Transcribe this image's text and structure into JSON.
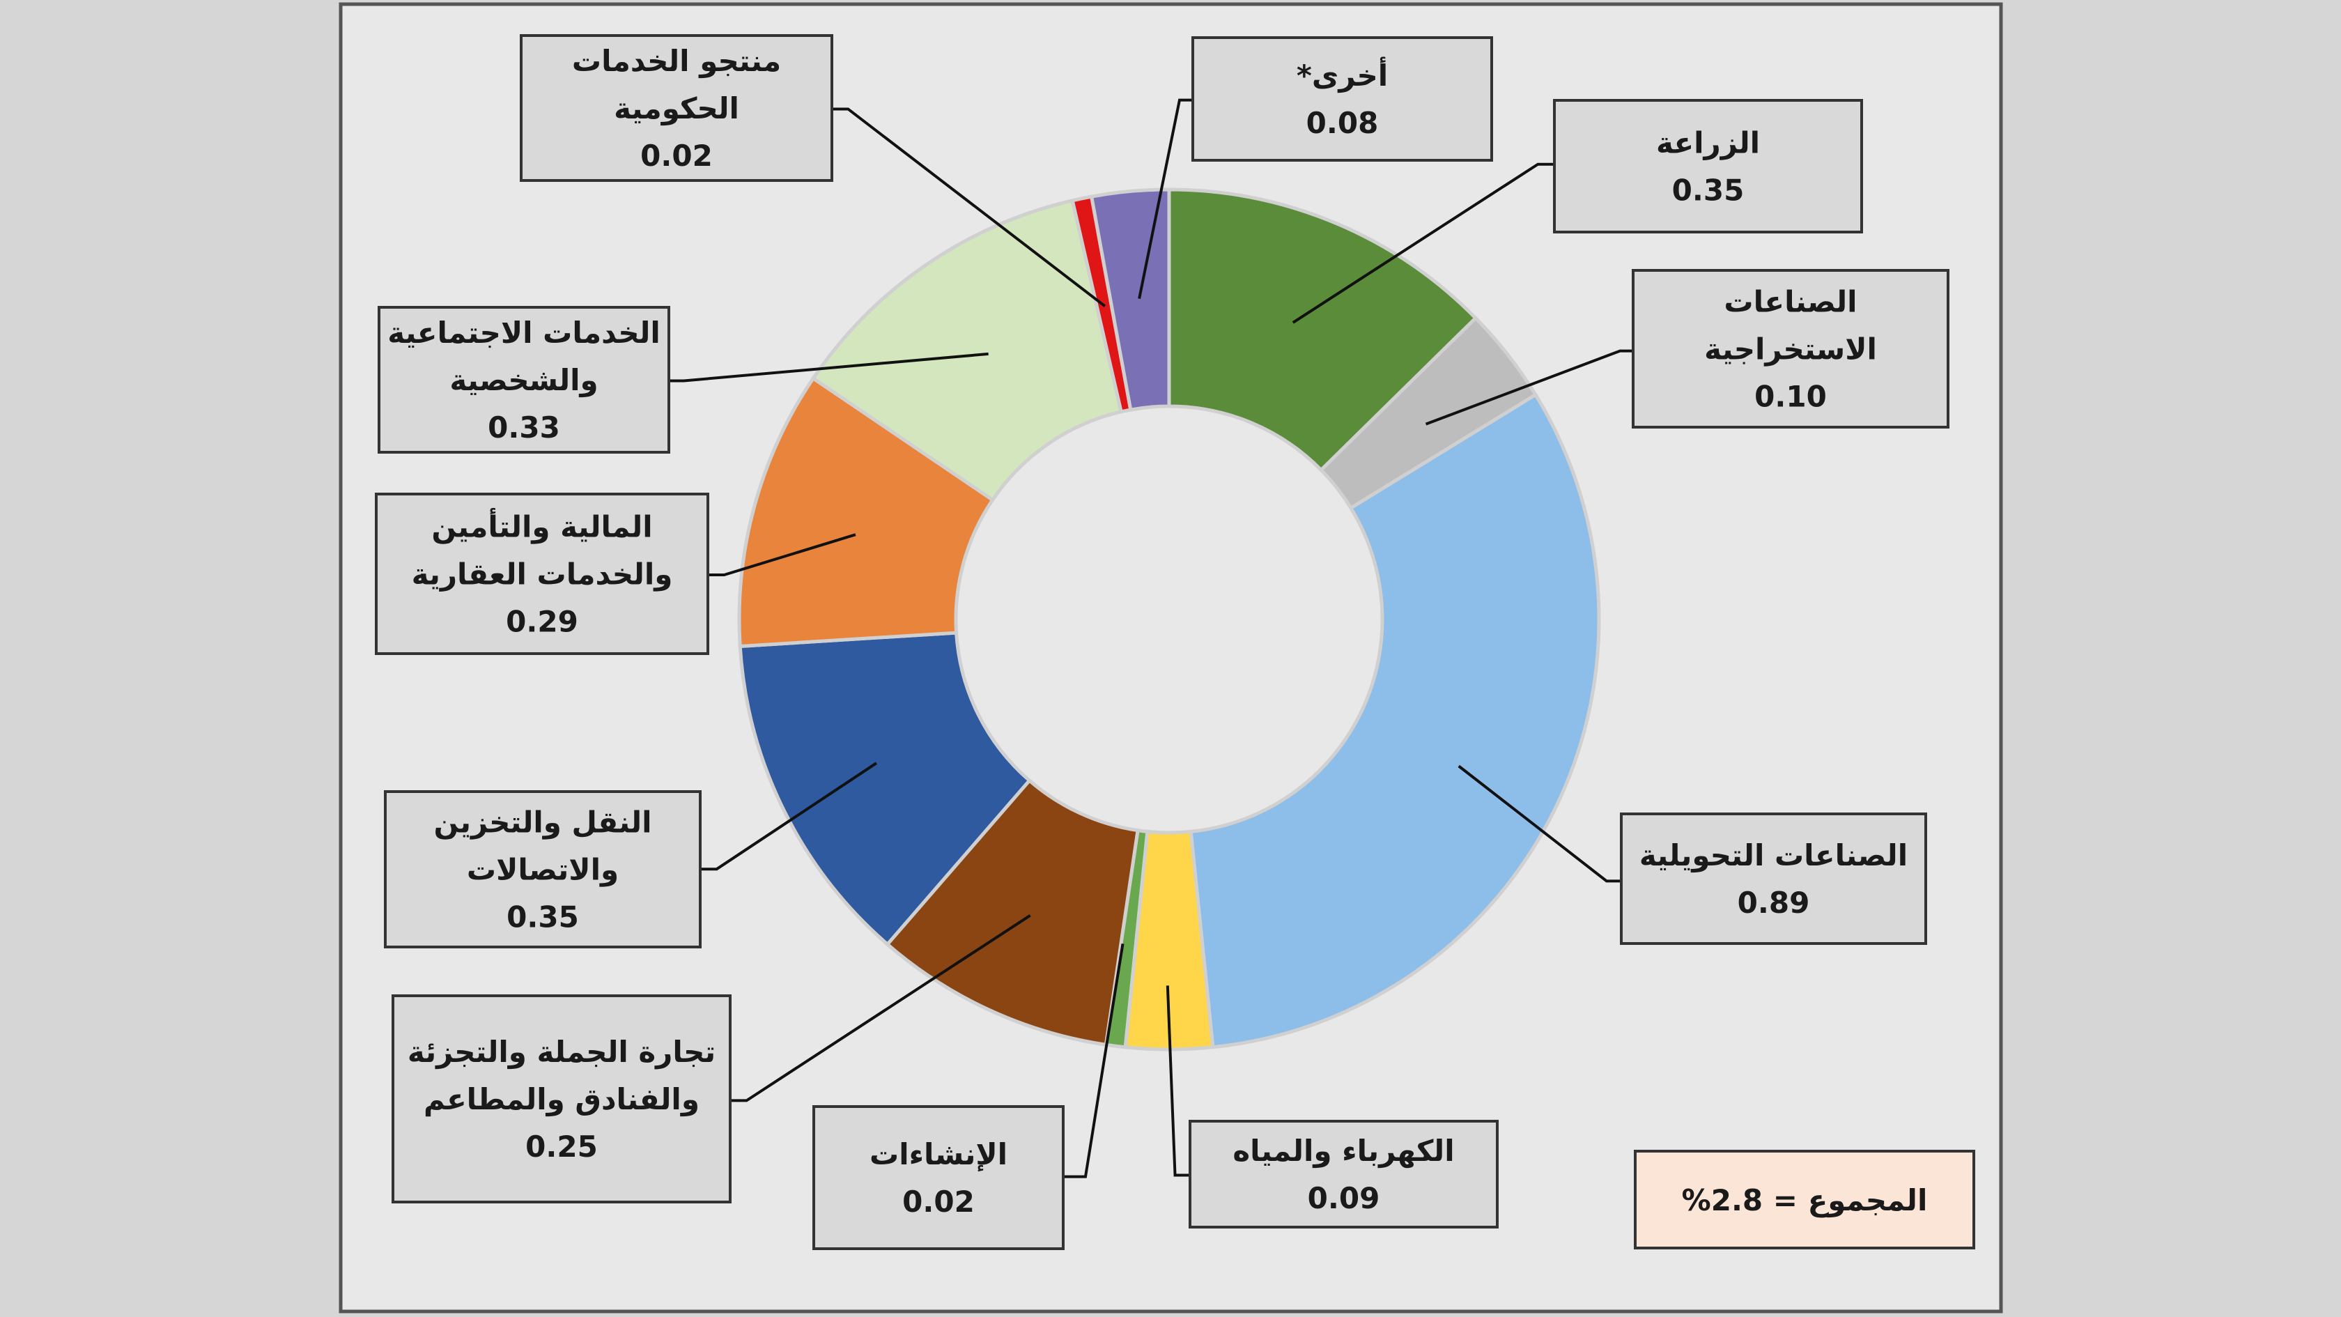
{
  "chart_data": {
    "type": "pie",
    "variant": "donut",
    "title": "",
    "direction": "clockwise from top",
    "slices": [
      {
        "label": "الزراعة",
        "value": 0.35,
        "color": "#5b8c3a"
      },
      {
        "label": "الصناعات الاستخراجية",
        "lines": [
          "الصناعات",
          "الاستخراجية"
        ],
        "value": 0.1,
        "color": "#bdbdbd"
      },
      {
        "label": "الصناعات التحويلية",
        "lines": [
          "الصناعات التحويلية"
        ],
        "value": 0.89,
        "color": "#8dbde9"
      },
      {
        "label": "الكهرباء والمياه",
        "lines": [
          "الكهرباء والمياه"
        ],
        "value": 0.09,
        "color": "#ffd64a"
      },
      {
        "label": "الإنشاءات",
        "lines": [
          "الإنشاءات"
        ],
        "value": 0.02,
        "color": "#6aa84f"
      },
      {
        "label": "تجارة الجملة والتجزئة والفنادق والمطاعم",
        "lines": [
          "تجارة الجملة والتجزئة",
          "والفنادق والمطاعم"
        ],
        "value": 0.25,
        "color": "#8b4513"
      },
      {
        "label": "النقل والتخزين والاتصالات",
        "lines": [
          "النقل والتخزين",
          "والاتصالات"
        ],
        "value": 0.35,
        "color": "#2f5aa0"
      },
      {
        "label": "المالية والتأمين والخدمات العقارية",
        "lines": [
          "المالية والتأمين",
          "والخدمات العقارية"
        ],
        "value": 0.29,
        "color": "#e8843c"
      },
      {
        "label": "الخدمات الاجتماعية والشخصية",
        "lines": [
          "الخدمات الاجتماعية",
          "والشخصية"
        ],
        "value": 0.33,
        "color": "#d3e6bd"
      },
      {
        "label": "منتجو الخدمات الحكومية",
        "lines": [
          "منتجو الخدمات",
          "الحكومية"
        ],
        "value": 0.02,
        "color": "#e01616"
      },
      {
        "label": "أخرى*",
        "lines": [
          "أخرى*"
        ],
        "value": 0.08,
        "color": "#7a70b6"
      }
    ],
    "value_labels": [
      "0.35",
      "0.10",
      "0.89",
      "0.09",
      "0.02",
      "0.25",
      "0.35",
      "0.29",
      "0.33",
      "0.02",
      "0.08"
    ],
    "total_label": "المجموع = 2.8%",
    "colors": {
      "plot_background": "#e8e8e8",
      "label_box": "#d9d9d9",
      "total_box": "#fbe5d6"
    }
  }
}
